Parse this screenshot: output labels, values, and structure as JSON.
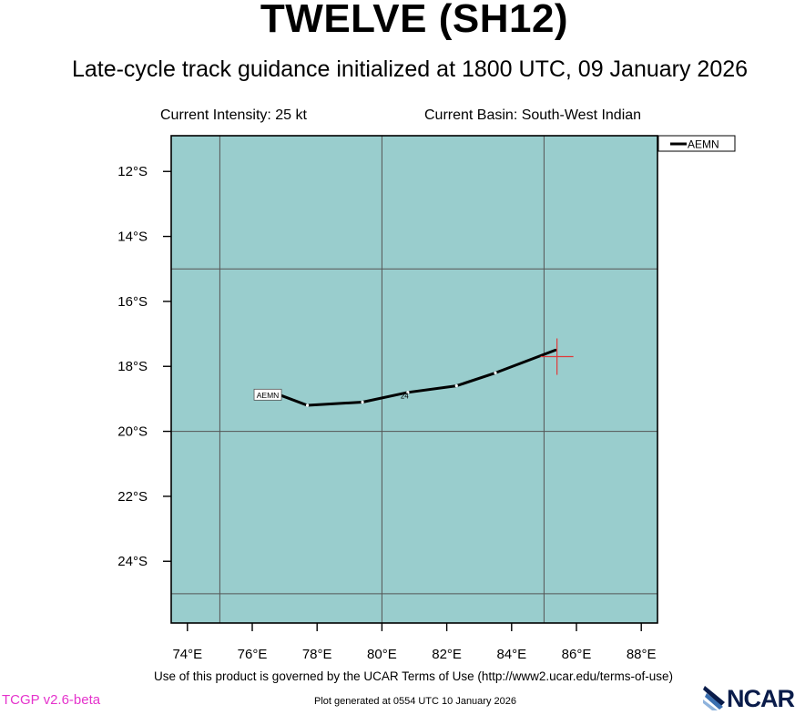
{
  "header": {
    "title": "TWELVE (SH12)",
    "subtitle": "Late-cycle track guidance initialized at 1800 UTC, 09 January 2026",
    "intensity": "Current Intensity: 25 kt",
    "basin": "Current Basin: South-West Indian"
  },
  "map": {
    "lon_range": [
      73.5,
      88.5
    ],
    "lat_range": [
      -25.9,
      -10.9
    ],
    "grid_lons": [
      75,
      80,
      85
    ],
    "grid_lats": [
      -15,
      -20,
      -25
    ],
    "lon_ticks": [
      74,
      76,
      78,
      80,
      82,
      84,
      86,
      88
    ],
    "lon_tick_labels": [
      "74°E",
      "76°E",
      "78°E",
      "80°E",
      "82°E",
      "84°E",
      "86°E",
      "88°E"
    ],
    "lat_ticks": [
      -12,
      -14,
      -16,
      -18,
      -20,
      -22,
      -24
    ],
    "lat_tick_labels": [
      "12°S",
      "14°S",
      "16°S",
      "18°S",
      "20°S",
      "22°S",
      "24°S"
    ],
    "ocean_color": "#99cdcd",
    "grid_color": "#555555",
    "current_position": {
      "lon": 85.4,
      "lat": -17.7,
      "color": "#e03a3a"
    }
  },
  "legend": {
    "entries": [
      "AEMN"
    ]
  },
  "tracks": [
    {
      "name": "AEMN",
      "color": "#000000",
      "label": "AEMN",
      "hour_label": "24",
      "hour_label_point": {
        "lon": 80.7,
        "lat": -18.88
      },
      "points": [
        {
          "lon": 85.35,
          "lat": -17.5
        },
        {
          "lon": 83.5,
          "lat": -18.2
        },
        {
          "lon": 82.3,
          "lat": -18.6
        },
        {
          "lon": 80.8,
          "lat": -18.8
        },
        {
          "lon": 79.4,
          "lat": -19.1
        },
        {
          "lon": 77.7,
          "lat": -19.2
        },
        {
          "lon": 76.9,
          "lat": -18.9
        }
      ]
    }
  ],
  "footer": {
    "terms": "Use of this product is governed by the UCAR Terms of Use (http://www2.ucar.edu/terms-of-use)",
    "version": "TCGP v2.6-beta",
    "generated": "Plot generated at 0554 UTC   10 January 2026",
    "logo_text": "NCAR"
  }
}
